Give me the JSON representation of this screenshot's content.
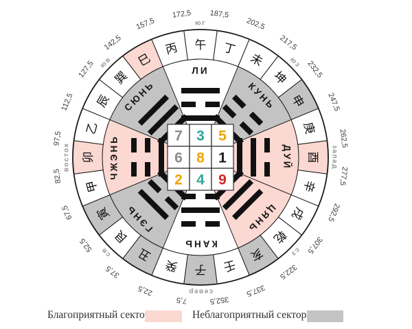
{
  "legend": {
    "favorable_label": "Благоприятный сектор",
    "unfavorable_label": "Неблагоприятный сектор",
    "favorable_color": "#fbd8d1",
    "unfavorable_color": "#c3c3c3"
  },
  "palette": {
    "sector_white": "#ffffff",
    "line": "#1a1a1a",
    "degree_text": "#3c3c3c",
    "direction_text": "#979797",
    "trigram": "#111111",
    "number_gray": "#8c8c8c",
    "number_teal": "#2ca79e",
    "number_amber": "#f0a400",
    "number_red": "#d22727",
    "number_black": "#1c1c1c"
  },
  "compass": {
    "degree_labels": [
      {
        "angle": 352.5,
        "text": "172,5"
      },
      {
        "angle": 7.5,
        "text": "187,5"
      },
      {
        "angle": 22.5,
        "text": "202,5"
      },
      {
        "angle": 37.5,
        "text": "217,5"
      },
      {
        "angle": 52.5,
        "text": "232,5"
      },
      {
        "angle": 67.5,
        "text": "247,5"
      },
      {
        "angle": 82.5,
        "text": "262,5"
      },
      {
        "angle": 97.5,
        "text": "277,5"
      },
      {
        "angle": 112.5,
        "text": "292,5"
      },
      {
        "angle": 127.5,
        "text": "307,5"
      },
      {
        "angle": 142.5,
        "text": "322,5"
      },
      {
        "angle": 157.5,
        "text": "337,5"
      },
      {
        "angle": 172.5,
        "text": "352,5"
      },
      {
        "angle": 187.5,
        "text": "7,5"
      },
      {
        "angle": 202.5,
        "text": "22,5"
      },
      {
        "angle": 217.5,
        "text": "37,5"
      },
      {
        "angle": 232.5,
        "text": "52,5"
      },
      {
        "angle": 247.5,
        "text": "67,5"
      },
      {
        "angle": 262.5,
        "text": "82,5"
      },
      {
        "angle": 277.5,
        "text": "97,5"
      },
      {
        "angle": 292.5,
        "text": "112,5"
      },
      {
        "angle": 307.5,
        "text": "127,5"
      },
      {
        "angle": 322.5,
        "text": "142,5"
      },
      {
        "angle": 337.5,
        "text": "157,5"
      }
    ],
    "direction_labels": [
      {
        "angle": 0,
        "text": "юг"
      },
      {
        "angle": 45,
        "text": "юз"
      },
      {
        "angle": 90,
        "text": "запад"
      },
      {
        "angle": 135,
        "text": "сз"
      },
      {
        "angle": 180,
        "text": "север"
      },
      {
        "angle": 225,
        "text": "св"
      },
      {
        "angle": 270,
        "text": "восток"
      },
      {
        "angle": 315,
        "text": "юв"
      }
    ],
    "mountain_ring": [
      {
        "angle": 0,
        "char": "午",
        "fill": "white"
      },
      {
        "angle": 15,
        "char": "丁",
        "fill": "white"
      },
      {
        "angle": 30,
        "char": "未",
        "fill": "white"
      },
      {
        "angle": 45,
        "char": "坤",
        "fill": "white"
      },
      {
        "angle": 60,
        "char": "申",
        "fill": "gray"
      },
      {
        "angle": 75,
        "char": "庚",
        "fill": "white"
      },
      {
        "angle": 90,
        "char": "酉",
        "fill": "pink"
      },
      {
        "angle": 105,
        "char": "辛",
        "fill": "white"
      },
      {
        "angle": 120,
        "char": "戌",
        "fill": "white"
      },
      {
        "angle": 135,
        "char": "乾",
        "fill": "white"
      },
      {
        "angle": 150,
        "char": "亥",
        "fill": "gray"
      },
      {
        "angle": 165,
        "char": "壬",
        "fill": "white"
      },
      {
        "angle": 180,
        "char": "子",
        "fill": "gray"
      },
      {
        "angle": 195,
        "char": "癸",
        "fill": "white"
      },
      {
        "angle": 210,
        "char": "丑",
        "fill": "gray"
      },
      {
        "angle": 225,
        "char": "艮",
        "fill": "white"
      },
      {
        "angle": 240,
        "char": "寅",
        "fill": "gray"
      },
      {
        "angle": 255,
        "char": "甲",
        "fill": "white"
      },
      {
        "angle": 270,
        "char": "卯",
        "fill": "pink"
      },
      {
        "angle": 285,
        "char": "乙",
        "fill": "white"
      },
      {
        "angle": 300,
        "char": "辰",
        "fill": "white"
      },
      {
        "angle": 315,
        "char": "巽",
        "fill": "white"
      },
      {
        "angle": 330,
        "char": "巳",
        "fill": "pink"
      },
      {
        "angle": 345,
        "char": "丙",
        "fill": "white"
      }
    ],
    "sectors": [
      {
        "angle": 0,
        "name": "ЛИ",
        "fill": "white",
        "trigram": [
          "solid",
          "broken",
          "solid"
        ]
      },
      {
        "angle": 45,
        "name": "КУНЬ",
        "fill": "gray",
        "trigram": [
          "broken",
          "broken",
          "broken"
        ]
      },
      {
        "angle": 90,
        "name": "ДУЙ",
        "fill": "pink",
        "trigram": [
          "broken",
          "solid",
          "solid"
        ]
      },
      {
        "angle": 135,
        "name": "ЦЯНЬ",
        "fill": "pink",
        "trigram": [
          "solid",
          "solid",
          "solid"
        ]
      },
      {
        "angle": 180,
        "name": "КАНЬ",
        "fill": "white",
        "trigram": [
          "broken",
          "solid",
          "broken"
        ]
      },
      {
        "angle": 225,
        "name": "ГЭНЬ",
        "fill": "gray",
        "trigram": [
          "solid",
          "broken",
          "broken"
        ]
      },
      {
        "angle": 270,
        "name": "ЧЖЭНЬ",
        "fill": "pink",
        "trigram": [
          "broken",
          "broken",
          "solid"
        ]
      },
      {
        "angle": 315,
        "name": "СЮНЬ",
        "fill": "gray",
        "trigram": [
          "solid",
          "solid",
          "broken"
        ]
      }
    ],
    "loshu_square": {
      "rows": [
        [
          {
            "value": "7",
            "color": "gray"
          },
          {
            "value": "3",
            "color": "teal"
          },
          {
            "value": "5",
            "color": "amber"
          }
        ],
        [
          {
            "value": "6",
            "color": "gray"
          },
          {
            "value": "8",
            "color": "amber"
          },
          {
            "value": "1",
            "color": "black"
          }
        ],
        [
          {
            "value": "2",
            "color": "amber"
          },
          {
            "value": "4",
            "color": "teal"
          },
          {
            "value": "9",
            "color": "red"
          }
        ]
      ]
    }
  }
}
